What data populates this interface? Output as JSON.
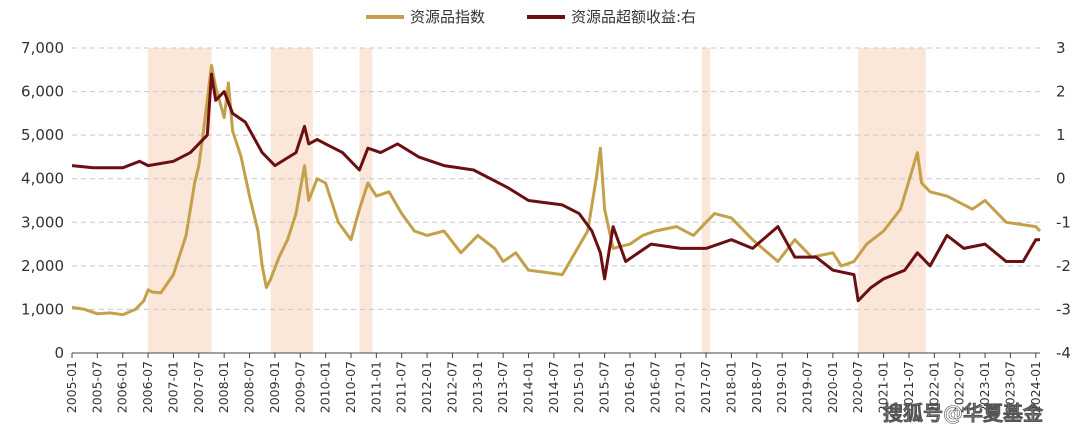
{
  "chart_data": {
    "type": "line",
    "legend": {
      "placement": "top-center"
    },
    "series": [
      {
        "name": "资源品指数",
        "color": "#c4a04a",
        "axis": "left",
        "points": [
          [
            "2005-01",
            1050
          ],
          [
            "2005-04",
            1000
          ],
          [
            "2005-07",
            900
          ],
          [
            "2005-10",
            920
          ],
          [
            "2006-01",
            880
          ],
          [
            "2006-04",
            1000
          ],
          [
            "2006-06",
            1200
          ],
          [
            "2006-07",
            1450
          ],
          [
            "2006-08",
            1400
          ],
          [
            "2006-10",
            1380
          ],
          [
            "2007-01",
            1800
          ],
          [
            "2007-04",
            2700
          ],
          [
            "2007-06",
            3900
          ],
          [
            "2007-07",
            4300
          ],
          [
            "2007-08",
            5000
          ],
          [
            "2007-10",
            6600
          ],
          [
            "2007-11",
            6100
          ],
          [
            "2008-01",
            5400
          ],
          [
            "2008-02",
            6200
          ],
          [
            "2008-03",
            5100
          ],
          [
            "2008-05",
            4500
          ],
          [
            "2008-07",
            3600
          ],
          [
            "2008-09",
            2800
          ],
          [
            "2008-10",
            2000
          ],
          [
            "2008-11",
            1500
          ],
          [
            "2008-12",
            1700
          ],
          [
            "2009-02",
            2200
          ],
          [
            "2009-04",
            2600
          ],
          [
            "2009-06",
            3200
          ],
          [
            "2009-08",
            4300
          ],
          [
            "2009-09",
            3500
          ],
          [
            "2009-11",
            4000
          ],
          [
            "2010-01",
            3900
          ],
          [
            "2010-04",
            3000
          ],
          [
            "2010-07",
            2600
          ],
          [
            "2010-09",
            3300
          ],
          [
            "2010-11",
            3900
          ],
          [
            "2011-01",
            3600
          ],
          [
            "2011-04",
            3700
          ],
          [
            "2011-07",
            3200
          ],
          [
            "2011-10",
            2800
          ],
          [
            "2012-01",
            2700
          ],
          [
            "2012-05",
            2800
          ],
          [
            "2012-09",
            2300
          ],
          [
            "2013-01",
            2700
          ],
          [
            "2013-05",
            2400
          ],
          [
            "2013-07",
            2100
          ],
          [
            "2013-10",
            2300
          ],
          [
            "2014-01",
            1900
          ],
          [
            "2014-05",
            1850
          ],
          [
            "2014-09",
            1800
          ],
          [
            "2014-12",
            2300
          ],
          [
            "2015-03",
            2800
          ],
          [
            "2015-05",
            4000
          ],
          [
            "2015-06",
            4700
          ],
          [
            "2015-07",
            3300
          ],
          [
            "2015-09",
            2400
          ],
          [
            "2016-01",
            2500
          ],
          [
            "2016-04",
            2700
          ],
          [
            "2016-07",
            2800
          ],
          [
            "2016-12",
            2900
          ],
          [
            "2017-04",
            2700
          ],
          [
            "2017-09",
            3200
          ],
          [
            "2018-01",
            3100
          ],
          [
            "2018-06",
            2600
          ],
          [
            "2018-12",
            2100
          ],
          [
            "2019-04",
            2600
          ],
          [
            "2019-08",
            2200
          ],
          [
            "2020-01",
            2300
          ],
          [
            "2020-03",
            2000
          ],
          [
            "2020-06",
            2100
          ],
          [
            "2020-09",
            2500
          ],
          [
            "2021-01",
            2800
          ],
          [
            "2021-05",
            3300
          ],
          [
            "2021-09",
            4600
          ],
          [
            "2021-10",
            3900
          ],
          [
            "2021-12",
            3700
          ],
          [
            "2022-04",
            3600
          ],
          [
            "2022-10",
            3300
          ],
          [
            "2023-01",
            3500
          ],
          [
            "2023-06",
            3000
          ],
          [
            "2024-01",
            2900
          ],
          [
            "2024-02",
            2800
          ]
        ]
      },
      {
        "name": "资源品超额收益:右",
        "color": "#6b0f12",
        "axis": "right",
        "points": [
          [
            "2005-01",
            0.3
          ],
          [
            "2005-06",
            0.25
          ],
          [
            "2006-01",
            0.25
          ],
          [
            "2006-05",
            0.4
          ],
          [
            "2006-07",
            0.3
          ],
          [
            "2007-01",
            0.4
          ],
          [
            "2007-05",
            0.6
          ],
          [
            "2007-09",
            1.0
          ],
          [
            "2007-10",
            2.4
          ],
          [
            "2007-11",
            1.8
          ],
          [
            "2008-01",
            2.0
          ],
          [
            "2008-03",
            1.5
          ],
          [
            "2008-06",
            1.3
          ],
          [
            "2008-10",
            0.6
          ],
          [
            "2009-01",
            0.3
          ],
          [
            "2009-06",
            0.6
          ],
          [
            "2009-08",
            1.2
          ],
          [
            "2009-09",
            0.8
          ],
          [
            "2009-11",
            0.9
          ],
          [
            "2010-01",
            0.8
          ],
          [
            "2010-05",
            0.6
          ],
          [
            "2010-09",
            0.2
          ],
          [
            "2010-11",
            0.7
          ],
          [
            "2011-02",
            0.6
          ],
          [
            "2011-06",
            0.8
          ],
          [
            "2011-11",
            0.5
          ],
          [
            "2012-05",
            0.3
          ],
          [
            "2012-12",
            0.2
          ],
          [
            "2013-08",
            -0.2
          ],
          [
            "2014-01",
            -0.5
          ],
          [
            "2014-09",
            -0.6
          ],
          [
            "2015-01",
            -0.8
          ],
          [
            "2015-04",
            -1.2
          ],
          [
            "2015-06",
            -1.7
          ],
          [
            "2015-07",
            -2.3
          ],
          [
            "2015-09",
            -1.1
          ],
          [
            "2015-12",
            -1.9
          ],
          [
            "2016-06",
            -1.5
          ],
          [
            "2017-01",
            -1.6
          ],
          [
            "2017-07",
            -1.6
          ],
          [
            "2018-01",
            -1.4
          ],
          [
            "2018-06",
            -1.6
          ],
          [
            "2018-12",
            -1.1
          ],
          [
            "2019-04",
            -1.8
          ],
          [
            "2019-09",
            -1.8
          ],
          [
            "2020-01",
            -2.1
          ],
          [
            "2020-06",
            -2.2
          ],
          [
            "2020-07",
            -2.8
          ],
          [
            "2020-10",
            -2.5
          ],
          [
            "2021-01",
            -2.3
          ],
          [
            "2021-06",
            -2.1
          ],
          [
            "2021-09",
            -1.7
          ],
          [
            "2021-12",
            -2.0
          ],
          [
            "2022-04",
            -1.3
          ],
          [
            "2022-08",
            -1.6
          ],
          [
            "2023-01",
            -1.5
          ],
          [
            "2023-06",
            -1.9
          ],
          [
            "2023-10",
            -1.9
          ],
          [
            "2024-01",
            -1.4
          ],
          [
            "2024-02",
            -1.4
          ]
        ]
      }
    ],
    "shaded_periods": [
      [
        "2006-07",
        "2007-10"
      ],
      [
        "2008-12",
        "2009-10"
      ],
      [
        "2010-09",
        "2010-12"
      ],
      [
        "2017-06",
        "2017-08"
      ],
      [
        "2020-07",
        "2021-11"
      ]
    ],
    "shade_color": "#fbe3d6",
    "y_left": {
      "min": 0,
      "max": 7000,
      "ticks": [
        "0",
        "1,000",
        "2,000",
        "3,000",
        "4,000",
        "5,000",
        "6,000",
        "7,000"
      ]
    },
    "y_right": {
      "min": -4,
      "max": 3,
      "ticks": [
        "-4",
        "-3",
        "-2",
        "-1",
        "0",
        "1",
        "2",
        "3"
      ]
    },
    "x_ticks": [
      "2005-01",
      "2005-07",
      "2006-01",
      "2006-07",
      "2007-01",
      "2007-07",
      "2008-01",
      "2008-07",
      "2009-01",
      "2009-07",
      "2010-01",
      "2010-07",
      "2011-01",
      "2011-07",
      "2012-01",
      "2012-07",
      "2013-01",
      "2013-07",
      "2014-01",
      "2014-07",
      "2015-01",
      "2015-07",
      "2016-01",
      "2016-07",
      "2017-01",
      "2017-07",
      "2018-01",
      "2018-07",
      "2019-01",
      "2019-07",
      "2020-01",
      "2020-07",
      "2021-01",
      "2021-07",
      "2022-01",
      "2022-07",
      "2023-01",
      "2023-07",
      "2024-01"
    ],
    "x_range": [
      "2005-01",
      "2024-02"
    ],
    "grid": "horizontal-dashed"
  },
  "watermark": "搜狐号@华夏基金"
}
